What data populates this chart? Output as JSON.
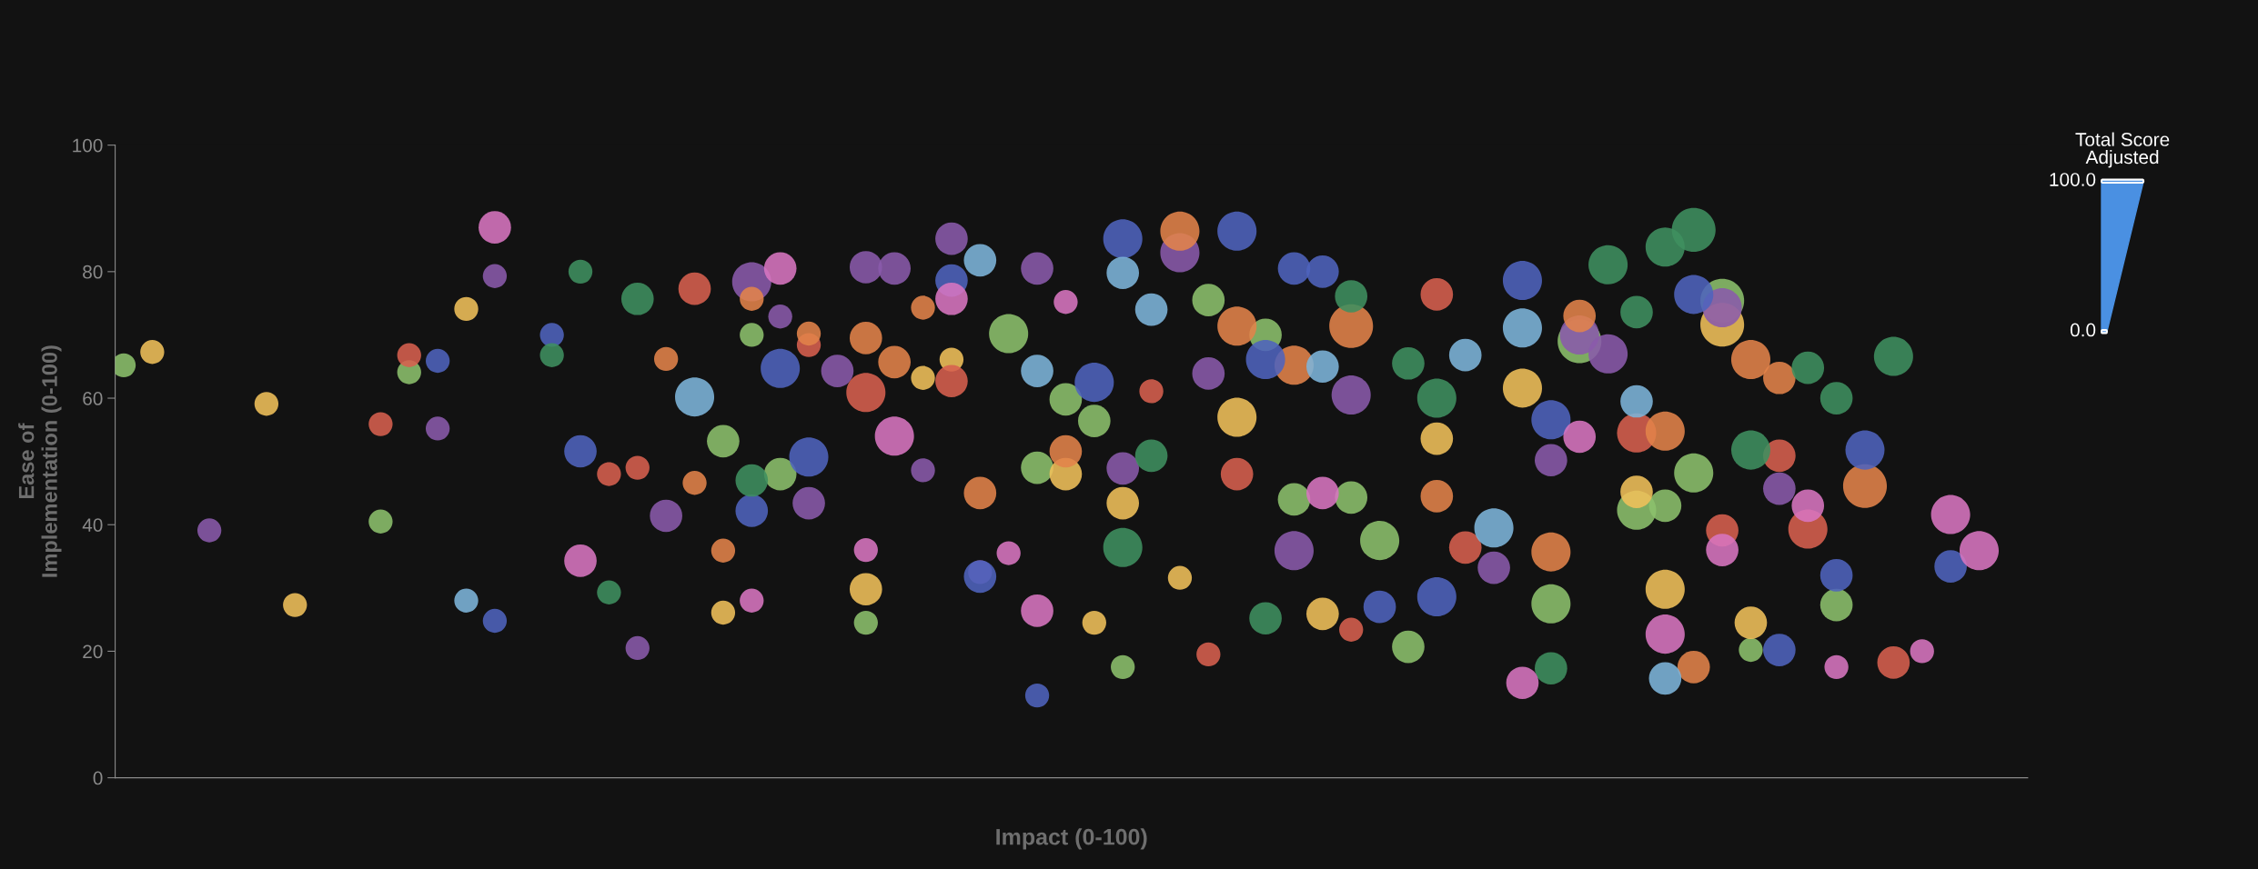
{
  "chart_data": {
    "type": "bubble",
    "xlabel": "Impact (0-100)",
    "ylabel": "Ease of\nImplementation (0-100)",
    "annotations": [
      "Total Score\nAdjusted",
      "100.0",
      "0.0"
    ],
    "categories": [
      null,
      null,
      null,
      null,
      null,
      null,
      null,
      null,
      null,
      null,
      null,
      null,
      null,
      null,
      null,
      null,
      null,
      null,
      null,
      null,
      null,
      null,
      null,
      null,
      null,
      null,
      null,
      null,
      null,
      null,
      null,
      null,
      null,
      null,
      null,
      null,
      null,
      null,
      null,
      null,
      null,
      null,
      null,
      null,
      null,
      null,
      null,
      null,
      null,
      null,
      null,
      null,
      null,
      null,
      null,
      null,
      null,
      null,
      null,
      null,
      null,
      null,
      null,
      null,
      null,
      null,
      null
    ],
    "ylim": [
      0,
      100
    ],
    "yticks": [
      0,
      20,
      40,
      60,
      80,
      100
    ],
    "tick_labels": "y",
    "series": [
      {
        "color": "#8cc06c",
        "values": [
          65.2,
          null,
          null,
          null,
          null,
          null,
          null,
          null,
          null,
          40.5,
          64.1,
          null,
          null,
          null,
          null,
          null,
          null,
          null,
          null,
          null,
          null,
          53.2,
          70,
          48,
          null,
          null,
          24.5,
          null,
          null,
          null,
          null,
          70.2,
          49,
          59.8,
          56.4,
          17.5,
          null,
          null,
          75.5,
          null,
          70,
          44,
          null,
          44.3,
          37.5,
          20.7,
          null,
          null,
          null,
          null,
          27.5,
          69,
          null,
          42.3,
          43,
          48.2,
          75.4,
          20.2,
          null,
          null,
          27.3,
          null,
          null,
          null,
          null,
          null,
          null
        ],
        "sizes": [
          0.3,
          null,
          null,
          null,
          null,
          null,
          null,
          null,
          null,
          0.3,
          0.3,
          null,
          null,
          null,
          null,
          null,
          null,
          null,
          null,
          null,
          null,
          0.55,
          0.3,
          0.55,
          null,
          null,
          0.3,
          null,
          null,
          null,
          null,
          0.8,
          0.55,
          0.55,
          0.55,
          0.3,
          null,
          null,
          0.55,
          null,
          0.55,
          0.55,
          null,
          0.55,
          0.8,
          0.55,
          null,
          null,
          null,
          null,
          0.8,
          1,
          null,
          0.8,
          0.55,
          0.8,
          1,
          0.3,
          null,
          null,
          0.55,
          null,
          null,
          null,
          null,
          null,
          null
        ]
      },
      {
        "color": "#f0c05a",
        "values": [
          null,
          67.3,
          null,
          null,
          null,
          59.1,
          27.3,
          null,
          null,
          null,
          null,
          null,
          74.1,
          null,
          null,
          null,
          null,
          null,
          null,
          null,
          null,
          26.1,
          null,
          null,
          null,
          null,
          29.8,
          null,
          63.2,
          66.1,
          null,
          null,
          null,
          48,
          24.5,
          43.4,
          null,
          31.6,
          null,
          57,
          null,
          null,
          25.9,
          null,
          null,
          null,
          53.6,
          null,
          null,
          61.6,
          null,
          null,
          null,
          45.2,
          29.8,
          null,
          71.6,
          24.5,
          null,
          null,
          null,
          null,
          null,
          null,
          null,
          null,
          null
        ],
        "sizes": [
          null,
          0.3,
          null,
          null,
          null,
          0.3,
          0.3,
          null,
          null,
          null,
          null,
          null,
          0.3,
          null,
          null,
          null,
          null,
          null,
          null,
          null,
          null,
          0.3,
          null,
          null,
          null,
          null,
          0.55,
          null,
          0.3,
          0.3,
          null,
          null,
          null,
          0.55,
          0.3,
          0.55,
          null,
          0.3,
          null,
          0.8,
          null,
          null,
          0.55,
          null,
          null,
          null,
          0.55,
          null,
          null,
          0.8,
          null,
          null,
          null,
          0.55,
          0.8,
          null,
          1,
          0.55,
          null,
          null,
          null,
          null,
          null,
          null,
          null,
          null,
          null
        ]
      },
      {
        "color": "#8a5aab",
        "values": [
          null,
          null,
          null,
          39.1,
          null,
          null,
          null,
          null,
          null,
          null,
          null,
          55.2,
          null,
          79.3,
          null,
          null,
          null,
          null,
          20.5,
          41.4,
          null,
          null,
          78.4,
          72.9,
          43.4,
          64.3,
          80.7,
          80.5,
          48.6,
          85.2,
          32.5,
          null,
          80.5,
          null,
          null,
          48.9,
          null,
          83,
          63.9,
          null,
          null,
          35.9,
          null,
          60.5,
          null,
          null,
          null,
          null,
          33.2,
          null,
          50.2,
          70,
          67,
          null,
          null,
          null,
          74.3,
          null,
          45.7,
          null,
          null,
          null,
          null,
          null,
          null,
          null,
          null
        ],
        "sizes": [
          null,
          null,
          null,
          0.3,
          null,
          null,
          null,
          null,
          null,
          null,
          null,
          0.3,
          null,
          0.3,
          null,
          null,
          null,
          null,
          0.3,
          0.55,
          null,
          null,
          0.8,
          0.3,
          0.55,
          0.55,
          0.55,
          0.55,
          0.3,
          0.55,
          0.3,
          null,
          0.55,
          null,
          null,
          0.55,
          null,
          0.8,
          0.55,
          null,
          null,
          0.8,
          null,
          0.8,
          null,
          null,
          null,
          null,
          0.55,
          null,
          0.55,
          0.8,
          0.8,
          null,
          null,
          null,
          0.8,
          null,
          0.55,
          null,
          null,
          null,
          null,
          null,
          null,
          null,
          null
        ]
      },
      {
        "color": "#d7604f",
        "values": [
          null,
          null,
          null,
          null,
          null,
          null,
          null,
          null,
          null,
          55.9,
          66.8,
          null,
          null,
          null,
          null,
          null,
          null,
          48,
          49,
          null,
          77.3,
          null,
          null,
          null,
          68.4,
          null,
          60.9,
          null,
          null,
          62.7,
          null,
          null,
          null,
          null,
          null,
          null,
          61.1,
          null,
          19.5,
          48,
          null,
          null,
          null,
          23.4,
          null,
          null,
          76.4,
          36.4,
          null,
          null,
          null,
          null,
          null,
          54.5,
          null,
          null,
          39.1,
          null,
          50.9,
          39.3,
          null,
          null,
          18.2,
          null,
          null,
          null,
          null
        ],
        "sizes": [
          null,
          null,
          null,
          null,
          null,
          null,
          null,
          null,
          null,
          0.3,
          0.3,
          null,
          null,
          null,
          null,
          null,
          null,
          0.3,
          0.3,
          null,
          0.55,
          null,
          null,
          null,
          0.3,
          null,
          0.8,
          null,
          null,
          0.55,
          null,
          null,
          null,
          null,
          null,
          null,
          0.3,
          null,
          0.3,
          0.55,
          null,
          null,
          null,
          0.3,
          null,
          null,
          0.55,
          0.55,
          null,
          null,
          null,
          null,
          null,
          0.8,
          null,
          null,
          0.55,
          null,
          0.55,
          0.8,
          null,
          null,
          0.55,
          null,
          null,
          null,
          null
        ]
      },
      {
        "color": "#e3834a",
        "values": [
          null,
          null,
          null,
          null,
          null,
          null,
          null,
          null,
          null,
          null,
          null,
          null,
          null,
          null,
          null,
          null,
          null,
          null,
          null,
          66.2,
          46.6,
          35.9,
          75.7,
          null,
          70.2,
          null,
          69.5,
          65.7,
          74.3,
          null,
          45,
          null,
          null,
          51.6,
          null,
          null,
          null,
          86.4,
          null,
          71.4,
          null,
          65.2,
          null,
          71.4,
          null,
          null,
          44.5,
          null,
          null,
          null,
          35.7,
          73,
          null,
          null,
          54.8,
          17.5,
          null,
          66.1,
          63.2,
          null,
          null,
          46.1,
          null,
          null,
          null,
          null,
          null
        ],
        "sizes": [
          null,
          null,
          null,
          null,
          null,
          null,
          null,
          null,
          null,
          null,
          null,
          null,
          null,
          null,
          null,
          null,
          null,
          null,
          null,
          0.3,
          0.3,
          0.3,
          0.3,
          null,
          0.3,
          null,
          0.55,
          0.55,
          0.3,
          null,
          0.55,
          null,
          null,
          0.55,
          null,
          null,
          null,
          0.8,
          null,
          0.8,
          null,
          0.8,
          null,
          1,
          null,
          null,
          0.55,
          null,
          null,
          null,
          0.8,
          0.55,
          null,
          null,
          0.8,
          0.55,
          null,
          0.8,
          0.55,
          null,
          null,
          1,
          null,
          null,
          null,
          null,
          null
        ]
      },
      {
        "color": "#4f63bd",
        "values": [
          null,
          null,
          null,
          null,
          null,
          null,
          null,
          null,
          null,
          null,
          null,
          65.9,
          null,
          24.8,
          null,
          70,
          51.6,
          null,
          null,
          null,
          null,
          null,
          42.2,
          64.7,
          50.7,
          null,
          null,
          null,
          null,
          78.6,
          31.8,
          null,
          13,
          null,
          62.5,
          85.2,
          null,
          null,
          null,
          86.4,
          66.1,
          80.5,
          80,
          null,
          27,
          null,
          28.6,
          null,
          null,
          78.6,
          56.6,
          null,
          null,
          null,
          null,
          76.4,
          null,
          null,
          20.2,
          null,
          32,
          51.8,
          null,
          null,
          33.4,
          null,
          null
        ],
        "sizes": [
          null,
          null,
          null,
          null,
          null,
          null,
          null,
          null,
          null,
          null,
          null,
          0.3,
          null,
          0.3,
          null,
          0.3,
          0.55,
          null,
          null,
          null,
          null,
          null,
          0.55,
          0.8,
          0.8,
          null,
          null,
          null,
          null,
          0.55,
          0.55,
          null,
          0.3,
          null,
          0.8,
          0.8,
          null,
          null,
          null,
          0.8,
          0.8,
          0.55,
          0.55,
          null,
          0.55,
          null,
          0.8,
          null,
          null,
          0.8,
          0.8,
          null,
          null,
          null,
          null,
          0.8,
          null,
          null,
          0.55,
          null,
          0.55,
          0.8,
          null,
          null,
          0.55,
          null,
          null
        ]
      },
      {
        "color": "#7db5db",
        "values": [
          null,
          null,
          null,
          null,
          null,
          null,
          null,
          null,
          null,
          null,
          null,
          null,
          28,
          null,
          null,
          null,
          null,
          null,
          null,
          null,
          60.2,
          null,
          null,
          null,
          null,
          null,
          null,
          null,
          null,
          null,
          81.8,
          null,
          64.3,
          null,
          null,
          79.8,
          74,
          null,
          null,
          null,
          null,
          null,
          65,
          null,
          null,
          null,
          null,
          66.8,
          39.5,
          71.1,
          null,
          null,
          null,
          59.5,
          15.7,
          null,
          null,
          null,
          null,
          null,
          null,
          null,
          null,
          null,
          null,
          null,
          null
        ],
        "sizes": [
          null,
          null,
          null,
          null,
          null,
          null,
          null,
          null,
          null,
          null,
          null,
          null,
          0.3,
          null,
          null,
          null,
          null,
          null,
          null,
          null,
          0.8,
          null,
          null,
          null,
          null,
          null,
          null,
          null,
          null,
          null,
          0.55,
          null,
          0.55,
          null,
          null,
          0.55,
          0.55,
          null,
          null,
          null,
          null,
          null,
          0.55,
          null,
          null,
          null,
          null,
          0.55,
          0.8,
          0.8,
          null,
          null,
          null,
          0.55,
          0.55,
          null,
          null,
          null,
          null,
          null,
          null,
          null,
          null,
          null,
          null,
          null,
          null
        ]
      },
      {
        "color": "#3f9060",
        "values": [
          null,
          null,
          null,
          null,
          null,
          null,
          null,
          null,
          null,
          null,
          null,
          null,
          null,
          null,
          null,
          66.8,
          80,
          29.3,
          75.7,
          null,
          null,
          null,
          47,
          null,
          null,
          null,
          null,
          null,
          null,
          null,
          null,
          null,
          null,
          null,
          null,
          36.4,
          50.9,
          null,
          null,
          null,
          25.2,
          null,
          null,
          76.1,
          null,
          65.5,
          60,
          null,
          null,
          null,
          17.3,
          null,
          81.1,
          73.6,
          83.9,
          86.6,
          null,
          51.8,
          null,
          64.8,
          60,
          null,
          66.6,
          null,
          null,
          null,
          null
        ],
        "sizes": [
          null,
          null,
          null,
          null,
          null,
          null,
          null,
          null,
          null,
          null,
          null,
          null,
          null,
          null,
          null,
          0.3,
          0.3,
          0.3,
          0.55,
          null,
          null,
          null,
          0.55,
          null,
          null,
          null,
          null,
          null,
          null,
          null,
          null,
          null,
          null,
          null,
          null,
          0.8,
          0.55,
          null,
          null,
          null,
          0.55,
          null,
          null,
          0.55,
          null,
          0.55,
          0.8,
          null,
          null,
          null,
          0.55,
          null,
          0.8,
          0.55,
          0.8,
          1,
          null,
          0.8,
          null,
          0.55,
          0.55,
          null,
          0.8,
          null,
          null,
          null,
          null
        ]
      },
      {
        "color": "#d875c0",
        "values": [
          null,
          null,
          null,
          null,
          null,
          null,
          null,
          null,
          null,
          null,
          null,
          null,
          null,
          87,
          null,
          null,
          34.3,
          null,
          null,
          null,
          null,
          null,
          28,
          80.5,
          null,
          null,
          36,
          54,
          null,
          75.7,
          null,
          35.5,
          26.4,
          75.2,
          null,
          null,
          null,
          null,
          null,
          null,
          null,
          null,
          45,
          null,
          null,
          null,
          null,
          null,
          null,
          15,
          null,
          53.9,
          null,
          null,
          22.7,
          null,
          36,
          null,
          null,
          43,
          17.5,
          null,
          null,
          20,
          41.6,
          35.9,
          null
        ],
        "sizes": [
          null,
          null,
          null,
          null,
          null,
          null,
          null,
          null,
          null,
          null,
          null,
          null,
          null,
          0.55,
          null,
          null,
          0.55,
          null,
          null,
          null,
          null,
          null,
          0.3,
          0.55,
          null,
          null,
          0.3,
          0.8,
          null,
          0.55,
          null,
          0.3,
          0.55,
          0.3,
          null,
          null,
          null,
          null,
          null,
          null,
          null,
          null,
          0.55,
          null,
          null,
          null,
          null,
          null,
          null,
          0.55,
          null,
          0.55,
          null,
          null,
          0.8,
          null,
          0.55,
          null,
          null,
          0.55,
          0.3,
          null,
          null,
          0.3,
          0.8,
          0.8,
          null
        ]
      }
    ]
  }
}
